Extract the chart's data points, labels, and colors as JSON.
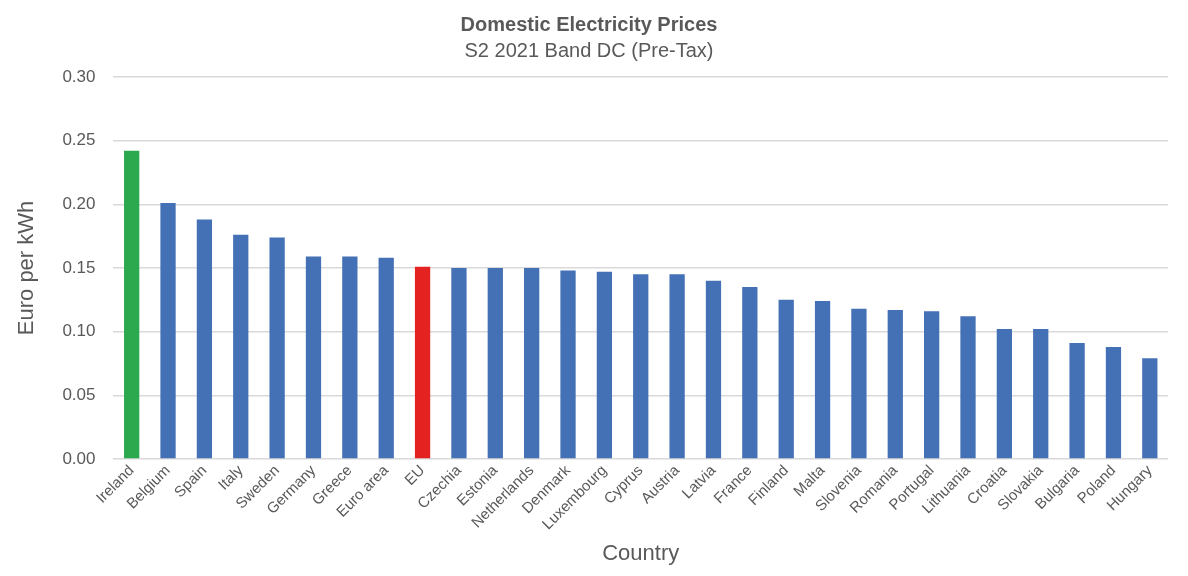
{
  "chart_data": {
    "type": "bar",
    "title": "Domestic Electricity Prices",
    "subtitle": "S2 2021 Band DC (Pre-Tax)",
    "xlabel": "Country",
    "ylabel": "Euro per kWh",
    "categories": [
      "Ireland",
      "Belgium",
      "Spain",
      "Italy",
      "Sweden",
      "Germany",
      "Greece",
      "Euro area",
      "EU",
      "Czechia",
      "Estonia",
      "Netherlands",
      "Denmark",
      "Luxembourg",
      "Cyprus",
      "Austria",
      "Latvia",
      "France",
      "Finland",
      "Malta",
      "Slovenia",
      "Romania",
      "Portugal",
      "Lithuania",
      "Croatia",
      "Slovakia",
      "Bulgaria",
      "Poland",
      "Hungary"
    ],
    "values": [
      0.242,
      0.201,
      0.188,
      0.176,
      0.174,
      0.159,
      0.159,
      0.158,
      0.151,
      0.15,
      0.15,
      0.15,
      0.148,
      0.147,
      0.145,
      0.145,
      0.14,
      0.135,
      0.125,
      0.124,
      0.118,
      0.117,
      0.116,
      0.112,
      0.102,
      0.102,
      0.091,
      0.088,
      0.079
    ],
    "colors": [
      "#2ca84e",
      "#4470b5",
      "#4470b5",
      "#4470b5",
      "#4470b5",
      "#4470b5",
      "#4470b5",
      "#4470b5",
      "#e42320",
      "#4470b5",
      "#4470b5",
      "#4470b5",
      "#4470b5",
      "#4470b5",
      "#4470b5",
      "#4470b5",
      "#4470b5",
      "#4470b5",
      "#4470b5",
      "#4470b5",
      "#4470b5",
      "#4470b5",
      "#4470b5",
      "#4470b5",
      "#4470b5",
      "#4470b5",
      "#4470b5",
      "#4470b5",
      "#4470b5"
    ],
    "ylim": [
      0,
      0.3
    ],
    "yticks": [
      {
        "value": 0,
        "label": "0.00"
      },
      {
        "value": 0.05,
        "label": "0.05"
      },
      {
        "value": 0.1,
        "label": "0.10"
      },
      {
        "value": 0.15,
        "label": "0.15"
      },
      {
        "value": 0.2,
        "label": "0.20"
      },
      {
        "value": 0.25,
        "label": "0.25"
      },
      {
        "value": 0.3,
        "label": "0.30"
      }
    ],
    "grid": "y",
    "legend": false
  }
}
